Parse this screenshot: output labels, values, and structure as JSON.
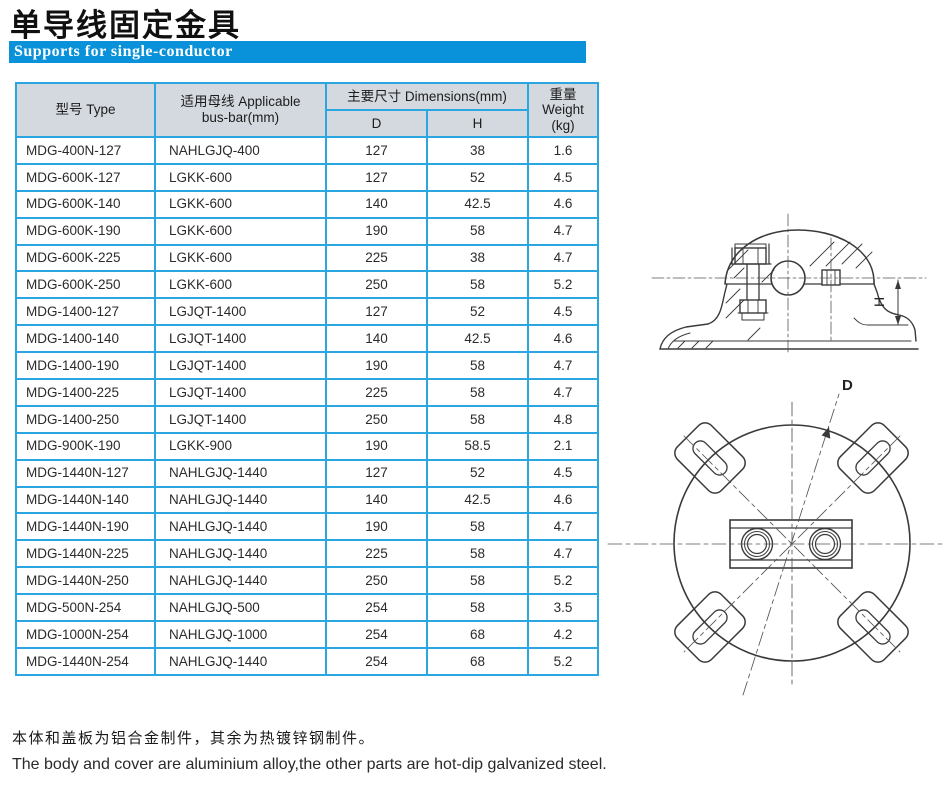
{
  "page": {
    "title": "单导线固定金具",
    "banner": "Supports for single-conductor"
  },
  "table": {
    "header": {
      "type": "型号 Type",
      "busbar_line1": "适用母线 Applicable",
      "busbar_line2": "bus-bar(mm)",
      "dimensions": "主要尺寸 Dimensions(mm)",
      "d": "D",
      "h": "H",
      "weight_line1": "重量",
      "weight_line2": "Weight",
      "weight_line3": "(kg)"
    },
    "rows": [
      [
        "MDG-400N-127",
        "NAHLGJQ-400",
        "127",
        "38",
        "1.6"
      ],
      [
        "MDG-600K-127",
        "LGKK-600",
        "127",
        "52",
        "4.5"
      ],
      [
        "MDG-600K-140",
        "LGKK-600",
        "140",
        "42.5",
        "4.6"
      ],
      [
        "MDG-600K-190",
        "LGKK-600",
        "190",
        "58",
        "4.7"
      ],
      [
        "MDG-600K-225",
        "LGKK-600",
        "225",
        "38",
        "4.7"
      ],
      [
        "MDG-600K-250",
        "LGKK-600",
        "250",
        "58",
        "5.2"
      ],
      [
        "MDG-1400-127",
        "LGJQT-1400",
        "127",
        "52",
        "4.5"
      ],
      [
        "MDG-1400-140",
        "LGJQT-1400",
        "140",
        "42.5",
        "4.6"
      ],
      [
        "MDG-1400-190",
        "LGJQT-1400",
        "190",
        "58",
        "4.7"
      ],
      [
        "MDG-1400-225",
        "LGJQT-1400",
        "225",
        "58",
        "4.7"
      ],
      [
        "MDG-1400-250",
        "LGJQT-1400",
        "250",
        "58",
        "4.8"
      ],
      [
        "MDG-900K-190",
        "LGKK-900",
        "190",
        "58.5",
        "2.1"
      ],
      [
        "MDG-1440N-127",
        "NAHLGJQ-1440",
        "127",
        "52",
        "4.5"
      ],
      [
        "MDG-1440N-140",
        "NAHLGJQ-1440",
        "140",
        "42.5",
        "4.6"
      ],
      [
        "MDG-1440N-190",
        "NAHLGJQ-1440",
        "190",
        "58",
        "4.7"
      ],
      [
        "MDG-1440N-225",
        "NAHLGJQ-1440",
        "225",
        "58",
        "4.7"
      ],
      [
        "MDG-1440N-250",
        "NAHLGJQ-1440",
        "250",
        "58",
        "5.2"
      ],
      [
        "MDG-500N-254",
        "NAHLGJQ-500",
        "254",
        "58",
        "3.5"
      ],
      [
        "MDG-1000N-254",
        "NAHLGJQ-1000",
        "254",
        "68",
        "4.2"
      ],
      [
        "MDG-1440N-254",
        "NAHLGJQ-1440",
        "254",
        "68",
        "5.2"
      ]
    ]
  },
  "drawings": {
    "side_view_h_label": "H",
    "plan_view_d_label": "D"
  },
  "notes": {
    "zh": "本体和盖板为铝合金制件，其余为热镀锌钢制件。",
    "en": "The body and cover are aluminium alloy,the other parts are hot-dip galvanized steel."
  },
  "colors": {
    "banner_bg": "#0992DA",
    "table_border": "#2AA7E0",
    "header_bg": "#D4D9DF",
    "drawing_stroke": "#3A3A3A",
    "text": "#222222"
  }
}
